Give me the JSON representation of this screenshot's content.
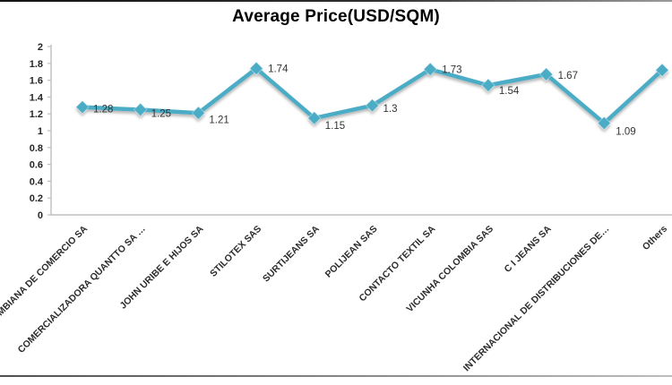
{
  "chart_data": {
    "type": "line",
    "title": "Average Price(USD/SQM)",
    "categories": [
      "MBIANA DE COMERCIO  SA",
      "COMERCIALIZADORA QUANTTO  SA …",
      "JOHN URIBE E HIJOS SA",
      "STILOTEX SAS",
      "SURTIJEANS  SA",
      "POLIJEAN SAS",
      "CONTACTO TEXTIL  SA",
      "VICUNHA COLOMBIA SAS",
      "C I JEANS SA",
      "INTERNACIONAL  DE DISTRIBUCIONES  DE…",
      "Others"
    ],
    "values": [
      1.28,
      1.25,
      1.21,
      1.74,
      1.15,
      1.3,
      1.73,
      1.54,
      1.67,
      1.09,
      1.72
    ],
    "data_labels": [
      "1.28",
      "1.25",
      "1.21",
      "1.74",
      "1.15",
      "1.3",
      "1.73",
      "1.54",
      "1.67",
      "1.09",
      ""
    ],
    "xlabel": "",
    "ylabel": "",
    "ylim": [
      0,
      2
    ],
    "y_ticks": [
      "0",
      "0.2",
      "0.4",
      "0.6",
      "0.8",
      "1",
      "1.2",
      "1.4",
      "1.6",
      "1.8",
      "2"
    ],
    "grid": "off",
    "legend": "none",
    "series_color": "#4BACC6",
    "axis_color": "#BFBFBF",
    "marker": "diamond"
  }
}
